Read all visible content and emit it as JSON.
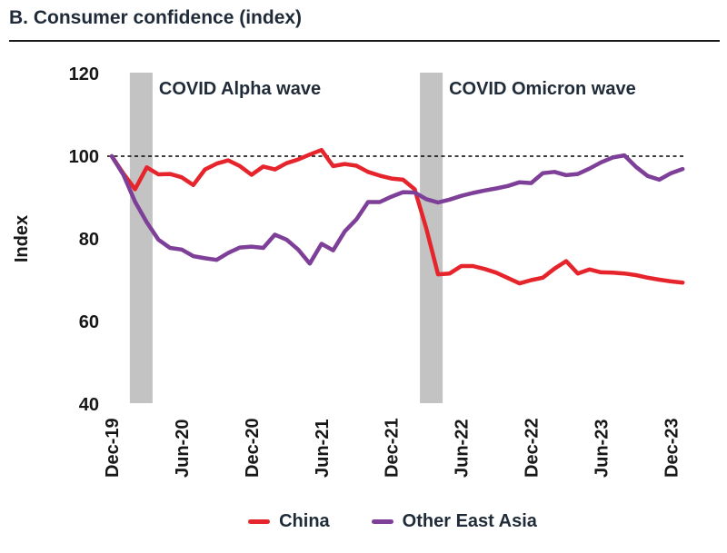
{
  "figure": {
    "title": "B. Consumer confidence (index)"
  },
  "annotations": {
    "alpha_wave": "COVID Alpha wave",
    "omicron_wave": "COVID Omicron wave"
  },
  "colors": {
    "china_red": "#e5242b",
    "other_east_asia_purple": "#7e3f98",
    "band_gray": "#c3c3c3",
    "reference_line": "#000000",
    "heading_text": "#1f2b38",
    "tick_text": "#171717",
    "background": "#ffffff"
  },
  "chart_data": {
    "type": "line",
    "title": "B. Consumer confidence (index)",
    "xlabel": "",
    "ylabel": "Index",
    "ylim": [
      40,
      120
    ],
    "yticks": [
      120,
      100,
      80,
      60,
      40
    ],
    "grid": "off",
    "legend_position": "bottom-center",
    "reference_line": 100,
    "x_tick_labels": [
      "Dec-19",
      "Jun-20",
      "Dec-20",
      "Jun-21",
      "Dec-21",
      "Jun-22",
      "Dec-22",
      "Jun-23",
      "Dec-23"
    ],
    "x": [
      "Dec-19",
      "Jan-20",
      "Feb-20",
      "Mar-20",
      "Apr-20",
      "May-20",
      "Jun-20",
      "Jul-20",
      "Aug-20",
      "Sep-20",
      "Oct-20",
      "Nov-20",
      "Dec-20",
      "Jan-21",
      "Feb-21",
      "Mar-21",
      "Apr-21",
      "May-21",
      "Jun-21",
      "Jul-21",
      "Aug-21",
      "Sep-21",
      "Oct-21",
      "Nov-21",
      "Dec-21",
      "Jan-22",
      "Feb-22",
      "Mar-22",
      "Apr-22",
      "May-22",
      "Jun-22",
      "Jul-22",
      "Aug-22",
      "Sep-22",
      "Oct-22",
      "Nov-22",
      "Dec-22",
      "Jan-23",
      "Feb-23",
      "Mar-23",
      "Apr-23",
      "May-23",
      "Jun-23",
      "Jul-23",
      "Aug-23",
      "Sep-23",
      "Oct-23",
      "Nov-23",
      "Dec-23",
      "Jan-24"
    ],
    "shaded_regions": [
      {
        "label": "COVID Alpha wave",
        "from_x": "Feb-20",
        "to_x": "Apr-20",
        "from_month_index": 1.55,
        "to_month_index": 3.5,
        "color": "#c3c3c3"
      },
      {
        "label": "COVID Omicron wave",
        "from_x": "Feb-22",
        "to_x": "Apr-22",
        "from_month_index": 26.45,
        "to_month_index": 28.4,
        "color": "#c3c3c3"
      }
    ],
    "series": [
      {
        "name": "China",
        "color": "#e5242b",
        "values": [
          100,
          95.8,
          92.0,
          97.3,
          95.6,
          95.7,
          94.9,
          93.0,
          96.8,
          98.2,
          99.0,
          97.6,
          95.5,
          97.5,
          96.8,
          98.3,
          99.2,
          100.4,
          101.5,
          97.6,
          98.1,
          97.7,
          96.2,
          95.3,
          94.6,
          94.3,
          92.0,
          82.5,
          71.4,
          71.6,
          73.4,
          73.4,
          72.7,
          71.8,
          70.5,
          69.2,
          70.0,
          70.6,
          72.8,
          74.6,
          71.6,
          72.6,
          71.9,
          71.8,
          71.6,
          71.2,
          70.6,
          70.1,
          69.7,
          69.4
        ]
      },
      {
        "name": "Other East Asia",
        "color": "#7e3f98",
        "values": [
          100,
          95.5,
          89.0,
          84.0,
          79.8,
          77.8,
          77.4,
          75.8,
          75.3,
          74.9,
          76.6,
          77.9,
          78.1,
          77.8,
          81.0,
          79.8,
          77.4,
          74.0,
          78.8,
          77.2,
          81.8,
          84.7,
          88.9,
          88.9,
          90.2,
          91.3,
          91.2,
          89.6,
          88.8,
          89.5,
          90.4,
          91.1,
          91.7,
          92.2,
          92.8,
          93.7,
          93.5,
          95.9,
          96.2,
          95.4,
          95.7,
          97.0,
          98.5,
          99.7,
          100.2,
          97.4,
          95.2,
          94.3,
          95.9,
          96.9
        ]
      }
    ]
  }
}
